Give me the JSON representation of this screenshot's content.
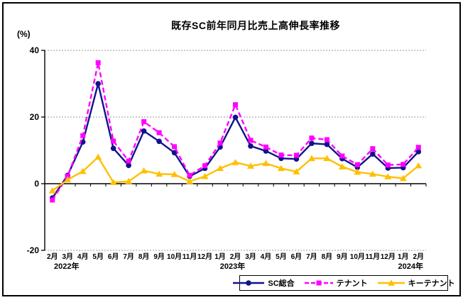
{
  "window": {
    "background": "#ffffff",
    "frame_color": "#000000"
  },
  "chart_data": {
    "type": "line",
    "title": "既存SC前年同月比売上高伸長率推移",
    "y_unit": "(%)",
    "ylim": [
      -20,
      40
    ],
    "y_ticks": [
      40,
      20,
      0,
      -20
    ],
    "grid": "horizontal gray dotted lines at 40/20/-20, solid black zero axis, left spine only",
    "legend_position": "bottom",
    "categories": [
      "2月",
      "3月",
      "4月",
      "5月",
      "6月",
      "7月",
      "8月",
      "9月",
      "10月",
      "11月",
      "12月",
      "1月",
      "2月",
      "3月",
      "4月",
      "5月",
      "6月",
      "7月",
      "8月",
      "9月",
      "10月",
      "11月",
      "12月",
      "1月",
      "2月"
    ],
    "year_labels": [
      {
        "text": "2022年",
        "index": 0
      },
      {
        "text": "2023年",
        "index": 12
      },
      {
        "text": "2024年",
        "index": 24
      }
    ],
    "series": [
      {
        "name": "SC総合",
        "color": "#12128C",
        "line": "solid",
        "marker": "circle",
        "values": [
          -4.3,
          2.5,
          12.5,
          30.0,
          10.6,
          5.5,
          15.8,
          12.7,
          9.3,
          2.2,
          4.6,
          11.0,
          19.9,
          11.3,
          9.8,
          7.6,
          7.4,
          12.1,
          11.8,
          7.5,
          4.9,
          8.9,
          4.7,
          4.8,
          9.6
        ]
      },
      {
        "name": "テナント",
        "color": "#FF00FF",
        "line": "dashed",
        "marker": "square",
        "values": [
          -4.9,
          2.2,
          14.4,
          36.3,
          12.8,
          6.8,
          18.6,
          15.3,
          11.1,
          2.5,
          5.4,
          12.2,
          23.7,
          13.0,
          11.0,
          8.6,
          8.5,
          13.7,
          13.2,
          8.3,
          5.7,
          10.5,
          5.6,
          5.8,
          10.9
        ]
      },
      {
        "name": "キーテナント",
        "color": "#FFC000",
        "line": "solid",
        "marker": "triangle",
        "values": [
          -2.1,
          1.2,
          3.7,
          8.0,
          0.4,
          0.7,
          3.9,
          2.9,
          2.8,
          0.7,
          2.2,
          4.6,
          6.4,
          5.3,
          6.1,
          4.6,
          3.6,
          7.6,
          7.6,
          5.1,
          3.5,
          2.9,
          2.1,
          1.6,
          5.4
        ]
      }
    ]
  }
}
